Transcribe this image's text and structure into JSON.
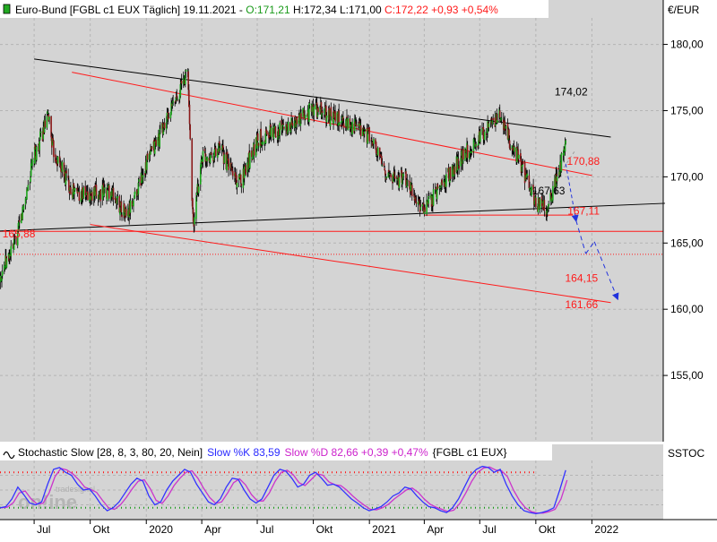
{
  "header": {
    "instrument": "Euro-Bund [FGBL c1 EUX  Täglich] 19.11.2021 - ",
    "open": "O:171,21",
    "hlc": " H:172,34 L:171,00 ",
    "change": "C:172,22 +0,93 +0,54%"
  },
  "axis": {
    "currency": "€/EUR",
    "indicator_short": "SSTOC"
  },
  "watermark": {
    "brand": "tradesignal",
    "logo": "on!ine"
  },
  "colors": {
    "background": "#d4d4d4",
    "candle_up": "#1aa51a",
    "candle_down": "#8b1a1a",
    "trend_red": "#ff1a1a",
    "trend_black": "#000000",
    "projection": "#2233dd",
    "stoch_k": "#3333ff",
    "stoch_d": "#cc33cc"
  },
  "chart_data": [
    {
      "type": "candlestick",
      "title": "Euro-Bund [FGBL c1 EUX  Täglich]",
      "date": "19.11.2021",
      "ohlc_last": {
        "open": 171.21,
        "high": 172.34,
        "low": 171.0,
        "close": 172.22,
        "change": 0.93,
        "change_pct": 0.54
      },
      "ylim": [
        150,
        182
      ],
      "y_ticks": [
        "180,00",
        "175,00",
        "170,00",
        "165,00",
        "160,00",
        "155,00"
      ],
      "x_ticks": [
        "Jul",
        "Okt",
        "2020",
        "Apr",
        "Jul",
        "Okt",
        "2021",
        "Apr",
        "Jul",
        "Okt",
        "2022"
      ],
      "series_close_path": [
        [
          "2019-05",
          162.2
        ],
        [
          "2019-06",
          165.0
        ],
        [
          "2019-07",
          171.5
        ],
        [
          "2019-07-25",
          174.6
        ],
        [
          "2019-08",
          172.0
        ],
        [
          "2019-09",
          169.0
        ],
        [
          "2019-10",
          168.5
        ],
        [
          "2019-11",
          169.0
        ],
        [
          "2019-12",
          167.0
        ],
        [
          "2020-01",
          171.0
        ],
        [
          "2020-02",
          174.0
        ],
        [
          "2020-03-09",
          178.0
        ],
        [
          "2020-03-18",
          166.2
        ],
        [
          "2020-04",
          171.5
        ],
        [
          "2020-05",
          172.0
        ],
        [
          "2020-06",
          169.5
        ],
        [
          "2020-07",
          172.8
        ],
        [
          "2020-08",
          173.5
        ],
        [
          "2020-09",
          174.0
        ],
        [
          "2020-10",
          175.2
        ],
        [
          "2020-11",
          174.5
        ],
        [
          "2020-12",
          174.0
        ],
        [
          "2021-01",
          173.0
        ],
        [
          "2021-02",
          170.0
        ],
        [
          "2021-03",
          169.8
        ],
        [
          "2021-04",
          167.4
        ],
        [
          "2021-05",
          169.5
        ],
        [
          "2021-06",
          171.5
        ],
        [
          "2021-07",
          173.0
        ],
        [
          "2021-08",
          174.6
        ],
        [
          "2021-09",
          171.5
        ],
        [
          "2021-10",
          168.0
        ],
        [
          "2021-10-20",
          167.6
        ],
        [
          "2021-11-19",
          172.22
        ]
      ],
      "annotations": [
        {
          "text": "174,02",
          "value": 174.02,
          "color": "#000000"
        },
        {
          "text": "170,88",
          "value": 170.88,
          "color": "#ff1a1a"
        },
        {
          "text": "167,63",
          "value": 167.63,
          "color": "#000000"
        },
        {
          "text": "167,11",
          "value": 167.11,
          "color": "#ff1a1a"
        },
        {
          "text": "165,88",
          "value": 165.88,
          "color": "#ff1a1a"
        },
        {
          "text": "164,15",
          "value": 164.15,
          "color": "#ff1a1a"
        },
        {
          "text": "161,66",
          "value": 161.66,
          "color": "#ff1a1a"
        }
      ],
      "horizontal_lines": [
        {
          "value": 165.88,
          "style": "solid",
          "color": "#ff1a1a"
        },
        {
          "value": 164.15,
          "style": "dotted",
          "color": "#ff1a1a"
        },
        {
          "value": 167.11,
          "style": "solid",
          "color": "#ff1a1a",
          "from": "2021-04",
          "to": "2021-12"
        }
      ],
      "trend_lines": [
        {
          "from": [
            "2019-07",
            178.9
          ],
          "to": [
            "2022-02",
            173.0
          ],
          "color": "#000000"
        },
        {
          "from": [
            "2019-09",
            177.9
          ],
          "to": [
            "2022-01",
            170.1
          ],
          "color": "#ff1a1a"
        },
        {
          "from": [
            "2019-05",
            165.9
          ],
          "to": [
            "2022-05",
            168.0
          ],
          "color": "#000000"
        },
        {
          "from": [
            "2019-10",
            166.4
          ],
          "to": [
            "2022-02",
            160.5
          ],
          "color": "#ff1a1a"
        }
      ],
      "projection_path": [
        [
          172.2,
          "2021-11-19"
        ],
        [
          166.7,
          "2021-12-06"
        ],
        [
          164.2,
          "2021-12-22"
        ],
        [
          165.1,
          "2022-01-05"
        ],
        [
          160.8,
          "2022-02-12"
        ]
      ]
    },
    {
      "type": "line",
      "title": "Stochastic Slow [28, 8, 3, 80, 20, Nein]",
      "params_text": "Stochastic Slow [28, 8, 3, 80, 20, Nein]",
      "k_text": "Slow %K 83,59",
      "d_text": "Slow %D 82,66 +0,39 +0,47%",
      "symbol_text": "{FGBL c1 EUX}",
      "ylim": [
        0,
        100
      ],
      "upper_level": 80,
      "lower_level": 20,
      "series": [
        {
          "name": "Slow %K",
          "last": 83.59
        },
        {
          "name": "Slow %D",
          "last": 82.66,
          "change": 0.39,
          "change_pct": 0.47
        }
      ],
      "values": [
        20,
        22,
        35,
        55,
        42,
        28,
        25,
        30,
        60,
        85,
        88,
        80,
        75,
        60,
        50,
        52,
        40,
        25,
        15,
        20,
        30,
        45,
        60,
        70,
        65,
        40,
        25,
        30,
        50,
        65,
        75,
        85,
        80,
        60,
        45,
        30,
        25,
        35,
        55,
        70,
        68,
        50,
        35,
        28,
        35,
        55,
        75,
        85,
        82,
        70,
        55,
        60,
        75,
        80,
        70,
        58,
        60,
        55,
        45,
        35,
        28,
        20,
        15,
        18,
        22,
        30,
        40,
        45,
        55,
        52,
        40,
        30,
        22,
        20,
        15,
        12,
        20,
        35,
        55,
        75,
        85,
        90,
        88,
        80,
        85,
        60,
        40,
        25,
        15,
        12,
        10,
        12,
        15,
        20,
        50,
        83.59
      ]
    }
  ]
}
